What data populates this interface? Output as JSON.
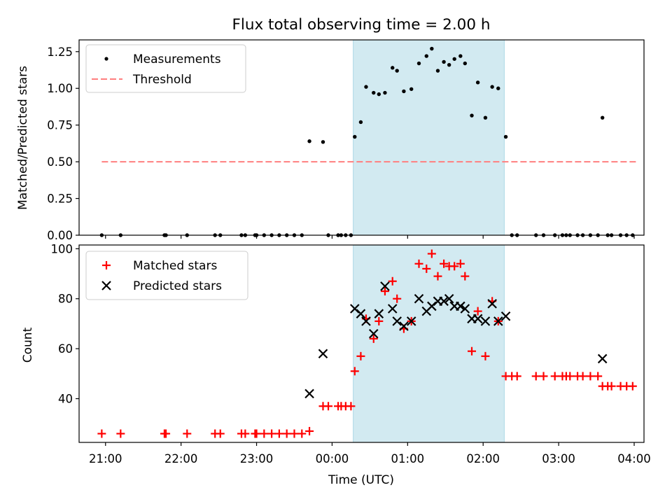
{
  "figure": {
    "title": "Flux total observing time = 2.00 h",
    "xlabel": "Time (UTC)",
    "x_ticks": [
      "21:00",
      "22:00",
      "23:00",
      "00:00",
      "01:00",
      "02:00",
      "03:00",
      "04:00"
    ]
  },
  "chart_data": [
    {
      "type": "scatter",
      "title": "Flux total observing time = 2.00 h",
      "ylabel": "Matched/Predicted stars",
      "x_unit": "hours since 21:00 UTC",
      "xlim": [
        -0.35,
        7.13
      ],
      "ylim": [
        0,
        1.33
      ],
      "y_ticks": [
        "0.00",
        "0.25",
        "0.50",
        "0.75",
        "1.00",
        "1.25"
      ],
      "highlight_span": {
        "x_start": 3.28,
        "x_end": 5.28,
        "color": "#add8e6"
      },
      "legend": {
        "position": "top-left",
        "entries": [
          "Measurements",
          "Threshold"
        ]
      },
      "series": [
        {
          "name": "Measurements",
          "marker": "dot",
          "color": "#000000",
          "x": [
            -0.05,
            0.2,
            0.78,
            0.8,
            1.08,
            1.45,
            1.52,
            1.8,
            1.85,
            1.98,
            2.0,
            2.1,
            2.2,
            2.3,
            2.4,
            2.5,
            2.6,
            2.7,
            2.88,
            2.95,
            3.08,
            3.12,
            3.18,
            3.25,
            3.3,
            3.38,
            3.45,
            3.55,
            3.62,
            3.7,
            3.8,
            3.86,
            3.95,
            4.05,
            4.15,
            4.25,
            4.32,
            4.4,
            4.48,
            4.55,
            4.62,
            4.7,
            4.76,
            4.85,
            4.93,
            5.03,
            5.12,
            5.2,
            5.3,
            5.38,
            5.45,
            5.7,
            5.8,
            5.95,
            6.05,
            6.1,
            6.15,
            6.25,
            6.32,
            6.42,
            6.52,
            6.58,
            6.65,
            6.7,
            6.82,
            6.9,
            6.98
          ],
          "y": [
            0,
            0,
            0,
            0,
            0,
            0,
            0,
            0,
            0,
            0,
            0,
            0,
            0,
            0,
            0,
            0,
            0,
            0.64,
            0.635,
            0,
            0,
            0,
            0,
            0,
            0.67,
            0.77,
            1.01,
            0.97,
            0.96,
            0.97,
            1.14,
            1.12,
            0.98,
            0.995,
            1.17,
            1.22,
            1.27,
            1.12,
            1.18,
            1.16,
            1.2,
            1.22,
            1.17,
            0.815,
            1.04,
            0.8,
            1.01,
            1.0,
            0.67,
            0,
            0,
            0,
            0,
            0,
            0,
            0,
            0,
            0,
            0,
            0,
            0,
            0.8,
            0,
            0,
            0,
            0,
            0
          ]
        },
        {
          "name": "Threshold",
          "marker": "dashed-line",
          "color": "#ff7f7f",
          "x": [
            -0.05,
            7.05
          ],
          "y": [
            0.5,
            0.5
          ]
        }
      ]
    },
    {
      "type": "scatter",
      "ylabel": "Count",
      "x_unit": "hours since 21:00 UTC",
      "xlim": [
        -0.35,
        7.13
      ],
      "ylim": [
        22.5,
        101.5
      ],
      "y_ticks": [
        "40",
        "60",
        "80",
        "100"
      ],
      "highlight_span": {
        "x_start": 3.28,
        "x_end": 5.28,
        "color": "#add8e6"
      },
      "legend": {
        "position": "top-left",
        "entries": [
          "Matched stars",
          "Predicted stars"
        ]
      },
      "series": [
        {
          "name": "Matched stars",
          "marker": "plus",
          "color": "#ff0000",
          "x": [
            -0.05,
            0.2,
            0.78,
            0.8,
            1.08,
            1.45,
            1.52,
            1.8,
            1.85,
            1.98,
            2.0,
            2.1,
            2.2,
            2.3,
            2.4,
            2.5,
            2.6,
            2.7,
            2.88,
            2.95,
            3.08,
            3.12,
            3.18,
            3.25,
            3.3,
            3.38,
            3.45,
            3.55,
            3.62,
            3.7,
            3.8,
            3.86,
            3.95,
            4.05,
            4.15,
            4.25,
            4.32,
            4.4,
            4.48,
            4.55,
            4.62,
            4.7,
            4.76,
            4.85,
            4.93,
            5.03,
            5.12,
            5.2,
            5.3,
            5.38,
            5.45,
            5.7,
            5.8,
            5.95,
            6.05,
            6.1,
            6.15,
            6.25,
            6.32,
            6.42,
            6.52,
            6.58,
            6.65,
            6.7,
            6.82,
            6.9,
            6.98
          ],
          "y": [
            26,
            26,
            26,
            26,
            26,
            26,
            26,
            26,
            26,
            26,
            26,
            26,
            26,
            26,
            26,
            26,
            26,
            27,
            37,
            37,
            37,
            37,
            37,
            37,
            51,
            57,
            72,
            64,
            71,
            83,
            87,
            80,
            68,
            71,
            94,
            92,
            98,
            89,
            94,
            93,
            93,
            94,
            89,
            59,
            75,
            57,
            79,
            71,
            49,
            49,
            49,
            49,
            49,
            49,
            49,
            49,
            49,
            49,
            49,
            49,
            49,
            45,
            45,
            45,
            45,
            45,
            45
          ]
        },
        {
          "name": "Predicted stars",
          "marker": "x",
          "color": "#000000",
          "x": [
            2.7,
            2.88,
            3.3,
            3.38,
            3.45,
            3.55,
            3.62,
            3.7,
            3.8,
            3.86,
            3.95,
            4.05,
            4.15,
            4.25,
            4.32,
            4.4,
            4.48,
            4.55,
            4.62,
            4.7,
            4.76,
            4.85,
            4.93,
            5.03,
            5.12,
            5.2,
            5.3,
            6.58
          ],
          "y": [
            42,
            58,
            76,
            74,
            71,
            66,
            74,
            85,
            76,
            71,
            69,
            71,
            80,
            75,
            77,
            79,
            79,
            80,
            77,
            77,
            76,
            72,
            72,
            71,
            78,
            71,
            73,
            56
          ]
        }
      ]
    }
  ]
}
